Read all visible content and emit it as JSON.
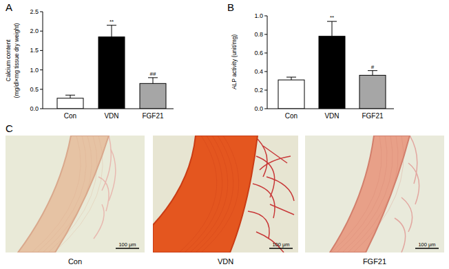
{
  "chart_data": [
    {
      "type": "bar",
      "title": "A",
      "y_label": [
        "Calcium content",
        "(mg/dl×mg tissue dry weight)"
      ],
      "categories": [
        "Con",
        "VDN",
        "FGF21"
      ],
      "values": [
        0.27,
        1.85,
        0.65
      ],
      "errors": [
        0.08,
        0.3,
        0.15
      ],
      "significance": [
        null,
        "**",
        "##"
      ],
      "colors": [
        "#ffffff",
        "#000000",
        "#a6a6a6"
      ],
      "ylim": [
        0,
        2.5
      ],
      "yticks": [
        {
          "value": 0,
          "label": "0.0"
        },
        0.5,
        {
          "value": 1,
          "label": "1.0"
        },
        1.5,
        {
          "value": 2,
          "label": "2.0"
        },
        2.5
      ],
      "grid": false
    },
    {
      "type": "bar",
      "title": "B",
      "y_label": [
        "ALP activity (unit/mg)"
      ],
      "categories": [
        "Con",
        "VDN",
        "FGF21"
      ],
      "values": [
        0.31,
        0.78,
        0.36
      ],
      "errors": [
        0.03,
        0.16,
        0.05
      ],
      "significance": [
        null,
        "**",
        "#"
      ],
      "colors": [
        "#ffffff",
        "#000000",
        "#a6a6a6"
      ],
      "ylim": [
        0,
        1
      ],
      "yticks": [
        {
          "value": 0,
          "label": "0.0"
        },
        0.2,
        0.4,
        0.6,
        0.8,
        {
          "value": 1,
          "label": "1.0"
        }
      ],
      "grid": false
    }
  ],
  "micrographs": {
    "title": "C",
    "images": [
      {
        "label": "Con",
        "scale_bar": "100 μm"
      },
      {
        "label": "VDN",
        "scale_bar": "100 μm"
      },
      {
        "label": "FGF21",
        "scale_bar": "100 μm"
      }
    ]
  }
}
